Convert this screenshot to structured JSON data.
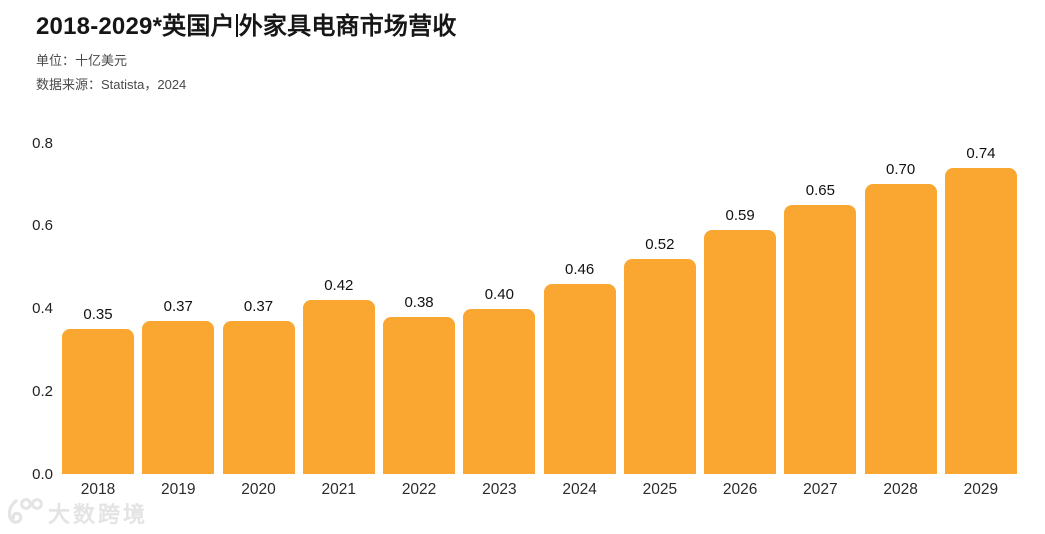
{
  "header": {
    "title_before_caret": "2018-2029*英国户",
    "title_after_caret": "外家具电商市场营收",
    "unit_label": "单位：十亿美元",
    "source_label": "数据来源：Statista，2024"
  },
  "watermark": {
    "icon": "k100-swirl-logo-icon",
    "text": "大数跨境"
  },
  "chart_data": {
    "type": "bar",
    "title": "2018-2029*英国户外家具电商市场营收",
    "unit": "十亿美元",
    "source": "Statista，2024",
    "categories": [
      "2018",
      "2019",
      "2020",
      "2021",
      "2022",
      "2023",
      "2024",
      "2025",
      "2026",
      "2027",
      "2028",
      "2029"
    ],
    "values": [
      0.35,
      0.37,
      0.37,
      0.42,
      0.38,
      0.4,
      0.46,
      0.52,
      0.59,
      0.65,
      0.7,
      0.74
    ],
    "xlabel": "",
    "ylabel": "",
    "ylim": [
      0,
      0.8
    ],
    "yticks": [
      0,
      0.2,
      0.4,
      0.6,
      0.8
    ],
    "grid": false,
    "legend": null,
    "value_labels": true,
    "bar_color": "#FAA732",
    "value_label_color": "#111111",
    "axis_label_color": "#2b2b2b"
  }
}
